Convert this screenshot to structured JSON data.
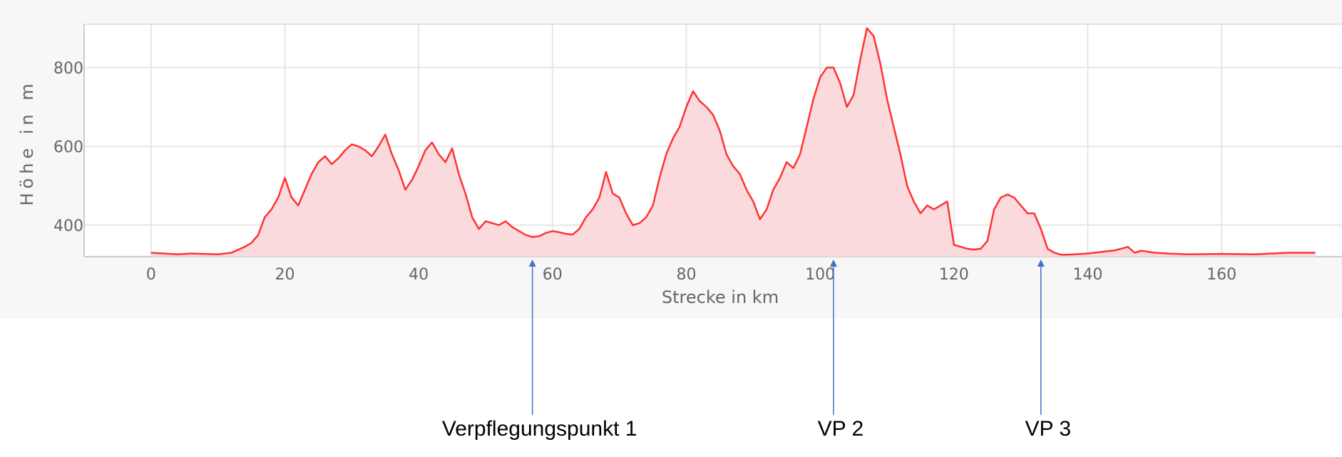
{
  "chart_data": {
    "type": "area",
    "xlabel": "Strecke in km",
    "ylabel": "Höhe in m",
    "xlim": [
      -10,
      178
    ],
    "ylim": [
      320,
      910
    ],
    "x_ticks": [
      0,
      20,
      40,
      60,
      80,
      100,
      120,
      140,
      160
    ],
    "y_ticks": [
      400,
      600,
      800
    ],
    "grid": true,
    "line_color": "#ff3333",
    "fill_color": "#fadadd",
    "series": [
      {
        "x": [
          0,
          2,
          4,
          6,
          8,
          10,
          12,
          14,
          15,
          16,
          17,
          18,
          19,
          20,
          21,
          22,
          23,
          24,
          25,
          26,
          27,
          28,
          29,
          30,
          31,
          32,
          33,
          34,
          35,
          36,
          37,
          38,
          39,
          40,
          41,
          42,
          43,
          44,
          45,
          46,
          47,
          48,
          49,
          50,
          51,
          52,
          53,
          54,
          55,
          56,
          57,
          58,
          59,
          60,
          61,
          62,
          63,
          64,
          65,
          66,
          67,
          68,
          69,
          70,
          71,
          72,
          73,
          74,
          75,
          76,
          77,
          78,
          79,
          80,
          81,
          82,
          83,
          84,
          85,
          86,
          87,
          88,
          89,
          90,
          91,
          92,
          93,
          94,
          95,
          96,
          97,
          98,
          99,
          100,
          101,
          102,
          103,
          104,
          105,
          106,
          107,
          108,
          109,
          110,
          111,
          112,
          113,
          114,
          115,
          116,
          117,
          118,
          119,
          120,
          121,
          122,
          123,
          124,
          125,
          126,
          127,
          128,
          129,
          130,
          131,
          132,
          133,
          134,
          135,
          136,
          137,
          138,
          140,
          142,
          144,
          145,
          146,
          147,
          148,
          150,
          152,
          155,
          160,
          165,
          170,
          174
        ],
        "y": [
          330,
          328,
          326,
          328,
          327,
          326,
          330,
          345,
          355,
          375,
          420,
          440,
          470,
          520,
          470,
          450,
          490,
          530,
          560,
          575,
          555,
          570,
          590,
          605,
          600,
          590,
          575,
          600,
          630,
          580,
          540,
          490,
          515,
          550,
          590,
          610,
          580,
          560,
          595,
          530,
          480,
          420,
          390,
          410,
          405,
          400,
          410,
          395,
          385,
          375,
          370,
          372,
          380,
          385,
          382,
          378,
          376,
          390,
          420,
          440,
          470,
          535,
          480,
          470,
          430,
          400,
          405,
          420,
          450,
          520,
          580,
          620,
          650,
          700,
          740,
          715,
          700,
          680,
          640,
          580,
          550,
          530,
          490,
          460,
          415,
          440,
          490,
          520,
          560,
          545,
          580,
          650,
          720,
          775,
          800,
          800,
          760,
          700,
          730,
          820,
          900,
          880,
          810,
          720,
          650,
          580,
          500,
          460,
          430,
          450,
          440,
          450,
          460,
          350,
          345,
          340,
          338,
          340,
          360,
          440,
          470,
          478,
          470,
          450,
          430,
          430,
          390,
          340,
          330,
          325,
          325,
          326,
          328,
          332,
          336,
          340,
          345,
          330,
          335,
          330,
          328,
          326,
          327,
          326,
          330,
          330
        ]
      }
    ],
    "annotations": [
      {
        "label": "Verpflegungspunkt 1",
        "x": 57
      },
      {
        "label": "VP 2",
        "x": 102
      },
      {
        "label": "VP 3",
        "x": 133
      }
    ]
  },
  "colors": {
    "panel_background": "#f7f7f7",
    "gridline": "#e6e6e6",
    "axis_line": "#cccccc",
    "annotation_arrow": "#4472c4"
  }
}
